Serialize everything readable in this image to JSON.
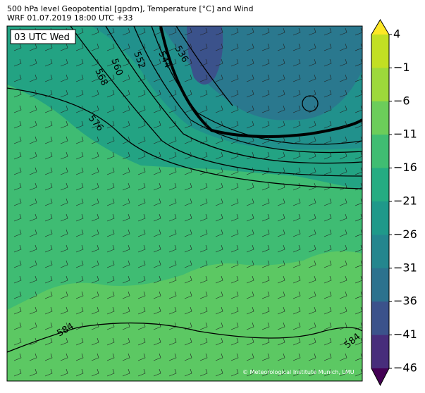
{
  "header": {
    "title_line1": "500 hPa level Geopotential [gpdm], Temperature [°C] and Wind",
    "title_line2": "WRF 01.07.2019 18:00 UTC +33"
  },
  "map": {
    "time_label": "03 UTC Wed",
    "contour_labels": [
      "536",
      "544",
      "552",
      "560",
      "568",
      "576",
      "584",
      "584"
    ],
    "credit": "© Meteorological Institute Munich, LMU"
  },
  "colorbar": {
    "ticks": [
      "4",
      "−1",
      "−6",
      "−11",
      "−16",
      "−21",
      "−26",
      "−31",
      "−36",
      "−41",
      "−46"
    ],
    "colors": [
      "#fde725",
      "#c2df23",
      "#9dd93b",
      "#6ccd5a",
      "#40bd72",
      "#25ac82",
      "#1f998a",
      "#24868e",
      "#2c728e",
      "#3b528b",
      "#472d7b",
      "#440154"
    ]
  }
}
